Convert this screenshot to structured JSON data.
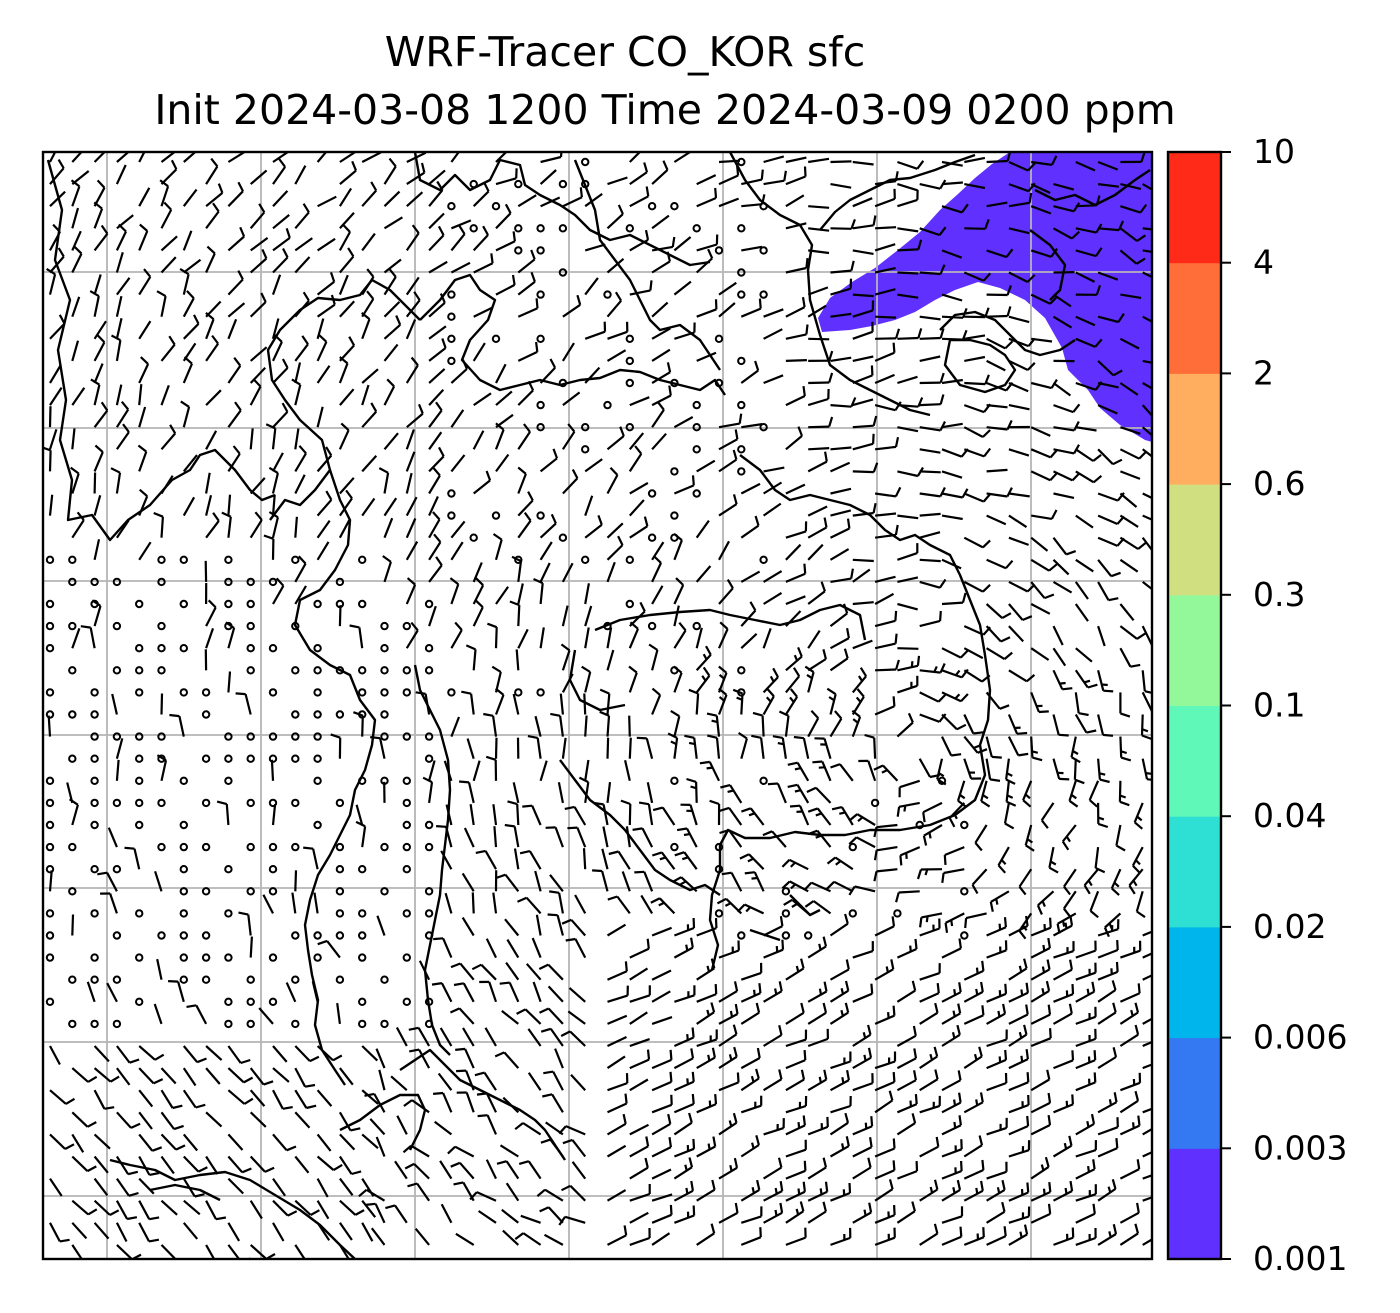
{
  "title": {
    "line1": "WRF-Tracer CO_KOR sfc",
    "line2": "Init 2024-03-08 1200 Time 2024-03-09 0200 ppm"
  },
  "map": {
    "variable": "CO_KOR",
    "level": "sfc",
    "init": "2024-03-08 1200",
    "valid": "2024-03-09 0200",
    "units": "ppm",
    "gridlines": true,
    "wind_barbs": true,
    "coastlines": true,
    "plume_colour": "#6030ff",
    "plume_location": "top-right"
  },
  "colorbar": {
    "levels": [
      "0.001",
      "0.003",
      "0.006",
      "0.02",
      "0.04",
      "0.1",
      "0.3",
      "0.6",
      "2",
      "4",
      "10"
    ],
    "colors": [
      "#6030ff",
      "#3478f2",
      "#00b4ec",
      "#2ee0d4",
      "#60f8b8",
      "#92f89a",
      "#d0e080",
      "#ffae60",
      "#ff6e38",
      "#ff2a18"
    ]
  }
}
